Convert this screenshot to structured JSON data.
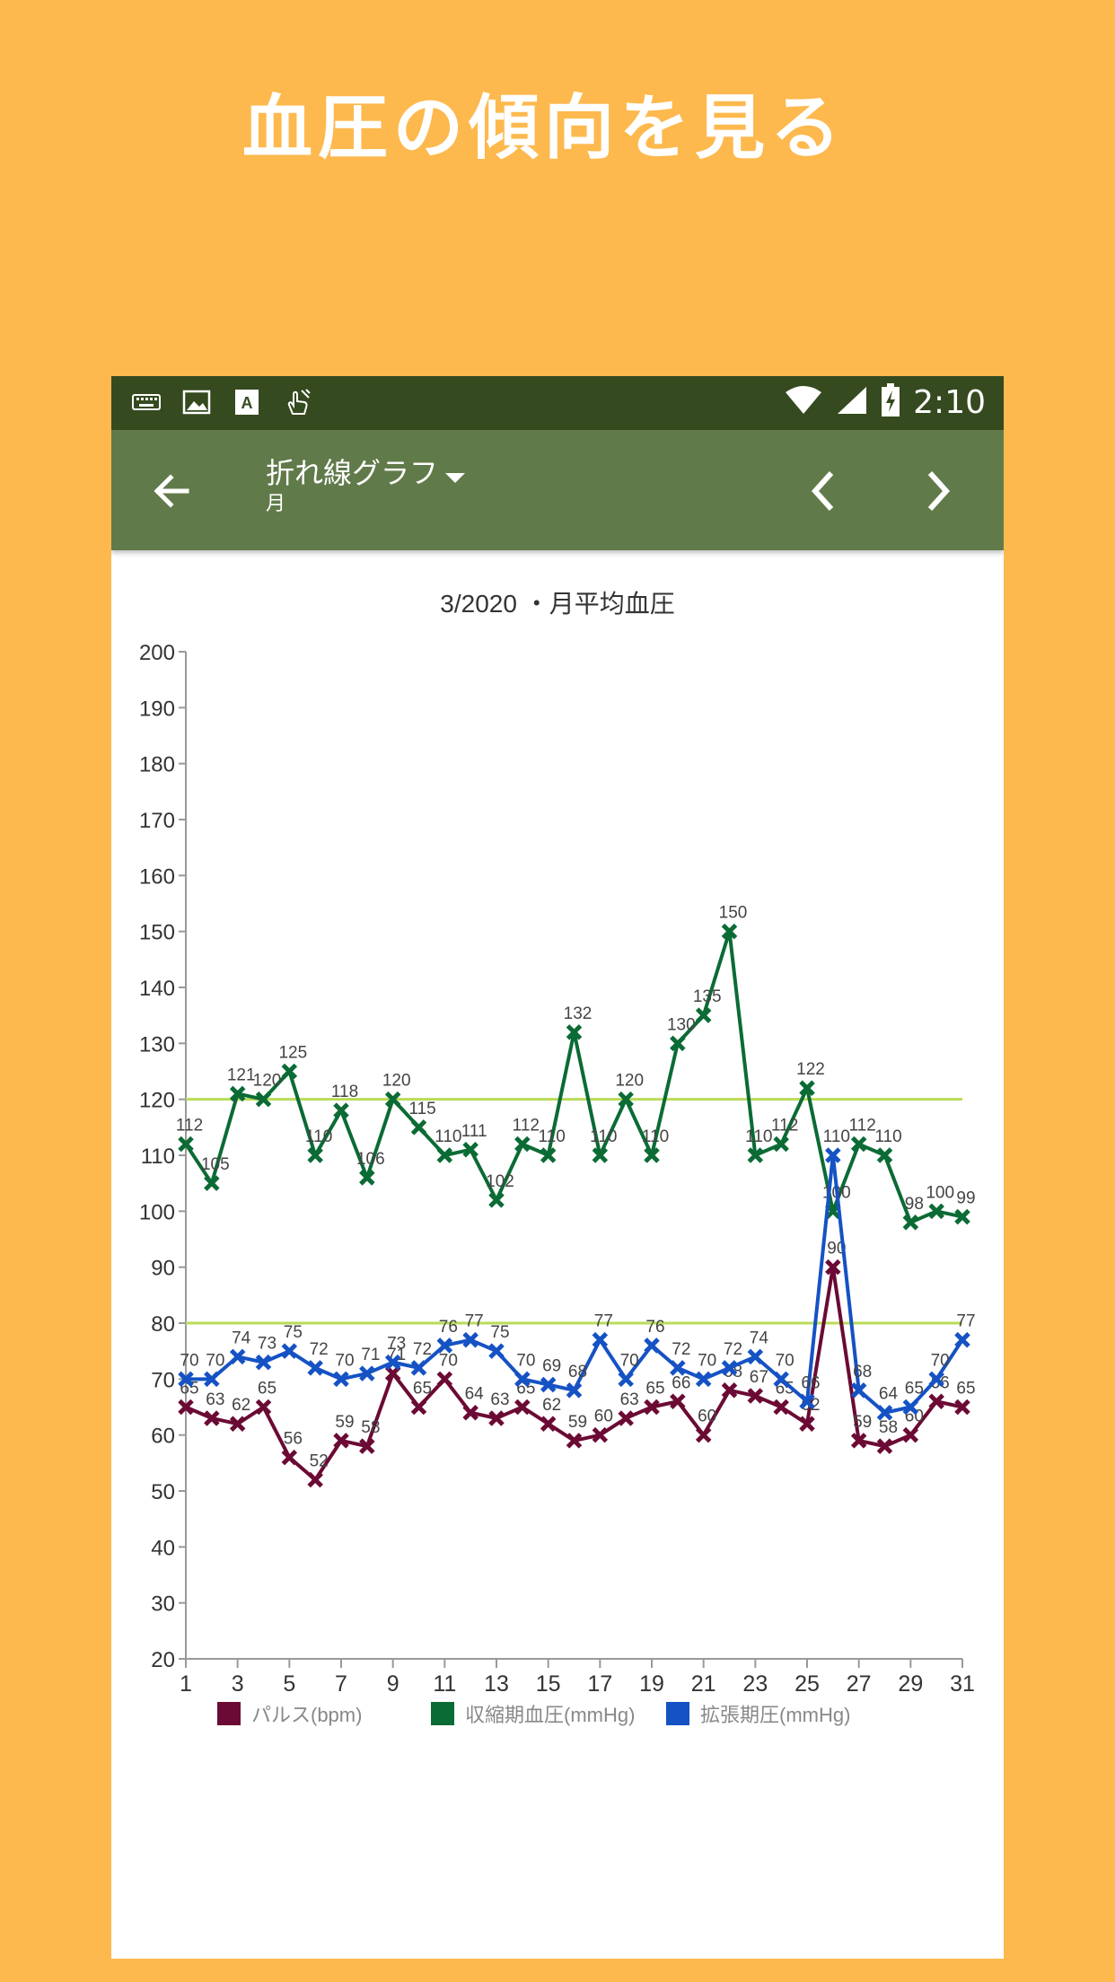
{
  "promo": {
    "headline": "血圧の傾向を見る"
  },
  "status_bar": {
    "time": "2:10",
    "left_icons": [
      "keyboard-icon",
      "image-icon",
      "text-a-icon",
      "hand-touch-icon"
    ],
    "right_icons": [
      "wifi-icon",
      "signal-icon",
      "battery-charging-icon"
    ]
  },
  "toolbar": {
    "title": "折れ線グラフ",
    "subtitle": "月",
    "back_icon": "arrow-left-icon",
    "prev_icon": "chevron-left-icon",
    "next_icon": "chevron-right-icon"
  },
  "colors": {
    "background": "#FDB94E",
    "status_bar": "#354A1F",
    "toolbar": "#617A4A",
    "pulse": "#6B0A34",
    "systolic": "#0B6B35",
    "diastolic": "#1552C4",
    "threshold": "#B9DB5A"
  },
  "chart_data": {
    "type": "line",
    "title": "3/2020 ・月平均血圧",
    "x": [
      1,
      2,
      3,
      4,
      5,
      6,
      7,
      8,
      9,
      10,
      11,
      12,
      13,
      14,
      15,
      16,
      17,
      18,
      19,
      20,
      21,
      22,
      23,
      24,
      25,
      26,
      27,
      28,
      29,
      30,
      31
    ],
    "x_tick_labels": [
      "1",
      "3",
      "5",
      "7",
      "9",
      "11",
      "13",
      "15",
      "17",
      "19",
      "21",
      "23",
      "25",
      "27",
      "29",
      "31"
    ],
    "ylim": [
      20,
      200
    ],
    "y_tick_labels": [
      "20",
      "30",
      "40",
      "50",
      "60",
      "70",
      "80",
      "90",
      "100",
      "110",
      "120",
      "130",
      "140",
      "150",
      "160",
      "170",
      "180",
      "190",
      "200"
    ],
    "reference_lines": [
      120,
      80
    ],
    "legend_position": "bottom",
    "series": [
      {
        "name": "パルス(bpm)",
        "color": "#6B0A34",
        "values": [
          65,
          63,
          62,
          65,
          56,
          52,
          59,
          58,
          71,
          65,
          70,
          64,
          63,
          65,
          62,
          59,
          60,
          63,
          65,
          66,
          60,
          68,
          67,
          65,
          62,
          90,
          59,
          58,
          60,
          66,
          65
        ]
      },
      {
        "name": "収縮期血圧(mmHg)",
        "color": "#0B6B35",
        "values": [
          112,
          105,
          121,
          120,
          125,
          110,
          118,
          106,
          120,
          115,
          110,
          111,
          102,
          112,
          110,
          132,
          110,
          120,
          110,
          130,
          135,
          150,
          110,
          112,
          122,
          100,
          112,
          110,
          98,
          100,
          99
        ]
      },
      {
        "name": "拡張期圧(mmHg)",
        "color": "#1552C4",
        "values": [
          70,
          70,
          74,
          73,
          75,
          72,
          70,
          71,
          73,
          72,
          76,
          77,
          75,
          70,
          69,
          68,
          77,
          70,
          76,
          72,
          70,
          72,
          74,
          70,
          66,
          110,
          68,
          64,
          65,
          70,
          77
        ]
      }
    ]
  }
}
